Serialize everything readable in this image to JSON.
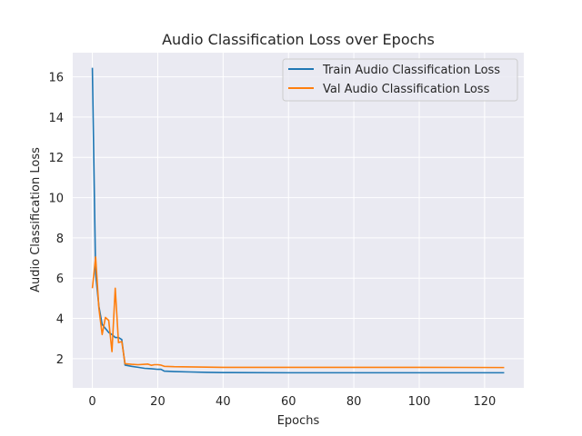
{
  "chart_data": {
    "type": "line",
    "title": "Audio Classification Loss over Epochs",
    "xlabel": "Epochs",
    "ylabel": "Audio Classification Loss",
    "xlim": [
      -6,
      132
    ],
    "ylim": [
      0.55,
      17.2
    ],
    "xticks": [
      0,
      20,
      40,
      60,
      80,
      100,
      120
    ],
    "yticks": [
      2,
      4,
      6,
      8,
      10,
      12,
      14,
      16
    ],
    "grid": true,
    "legend_position": "upper right",
    "series": [
      {
        "name": "Train Audio Classification Loss",
        "color": "#1f77b4",
        "points": [
          [
            0,
            16.45
          ],
          [
            1,
            6.2
          ],
          [
            2,
            4.6
          ],
          [
            3,
            3.7
          ],
          [
            4,
            3.5
          ],
          [
            5,
            3.3
          ],
          [
            6,
            3.2
          ],
          [
            7,
            3.05
          ],
          [
            8,
            3.05
          ],
          [
            9,
            2.95
          ],
          [
            10,
            1.68
          ],
          [
            12,
            1.62
          ],
          [
            14,
            1.57
          ],
          [
            16,
            1.52
          ],
          [
            18,
            1.5
          ],
          [
            20,
            1.47
          ],
          [
            21,
            1.47
          ],
          [
            22,
            1.38
          ],
          [
            25,
            1.36
          ],
          [
            30,
            1.34
          ],
          [
            35,
            1.32
          ],
          [
            40,
            1.31
          ],
          [
            60,
            1.3
          ],
          [
            80,
            1.3
          ],
          [
            100,
            1.3
          ],
          [
            126,
            1.3
          ]
        ]
      },
      {
        "name": "Val Audio Classification Loss",
        "color": "#ff7f0e",
        "points": [
          [
            0,
            5.5
          ],
          [
            1,
            7.05
          ],
          [
            2,
            4.5
          ],
          [
            3,
            3.2
          ],
          [
            4,
            4.05
          ],
          [
            5,
            3.9
          ],
          [
            6,
            2.35
          ],
          [
            7,
            5.5
          ],
          [
            8,
            2.8
          ],
          [
            9,
            2.85
          ],
          [
            10,
            1.75
          ],
          [
            12,
            1.72
          ],
          [
            14,
            1.7
          ],
          [
            16,
            1.72
          ],
          [
            17,
            1.73
          ],
          [
            18,
            1.67
          ],
          [
            19,
            1.7
          ],
          [
            20,
            1.7
          ],
          [
            21,
            1.68
          ],
          [
            22,
            1.62
          ],
          [
            25,
            1.6
          ],
          [
            30,
            1.59
          ],
          [
            35,
            1.58
          ],
          [
            40,
            1.57
          ],
          [
            60,
            1.57
          ],
          [
            80,
            1.57
          ],
          [
            100,
            1.57
          ],
          [
            126,
            1.56
          ]
        ]
      }
    ]
  }
}
